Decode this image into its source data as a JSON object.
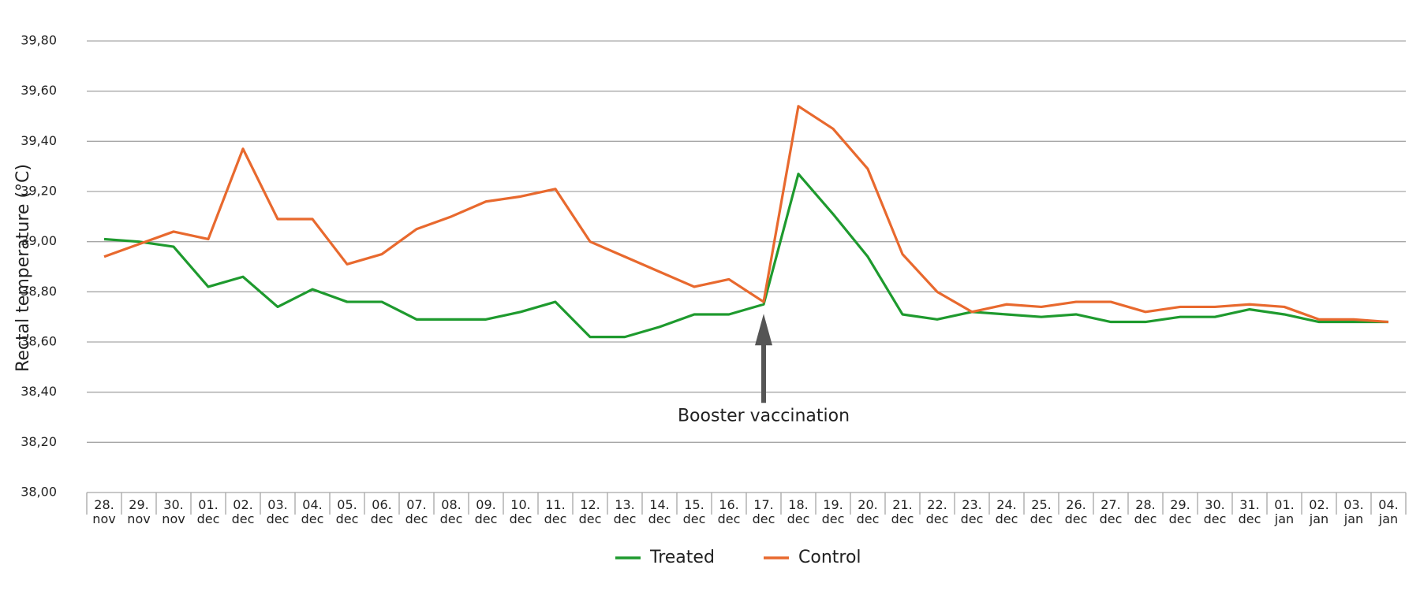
{
  "chart_data": {
    "type": "line",
    "y_label": "Rectal temperature (°C)",
    "annotation": "Booster vaccination",
    "categories": [
      "28. nov",
      "29. nov",
      "30. nov",
      "01. dec",
      "02. dec",
      "03. dec",
      "04. dec",
      "05. dec",
      "06. dec",
      "07. dec",
      "08. dec",
      "09. dec",
      "10. dec",
      "11. dec",
      "12. dec",
      "13. dec",
      "14. dec",
      "15. dec",
      "16. dec",
      "17. dec",
      "18. dec",
      "19. dec",
      "20. dec",
      "21. dec",
      "22. dec",
      "23. dec",
      "24. dec",
      "25. dec",
      "26. dec",
      "27. dec",
      "28. dec",
      "29. dec",
      "30. dec",
      "31. dec",
      "01. jan",
      "02. jan",
      "03. jan",
      "04. jan"
    ],
    "series": [
      {
        "name": "Treated",
        "color": "#1e9a2e",
        "values": [
          39.01,
          39.0,
          38.98,
          38.82,
          38.86,
          38.74,
          38.81,
          38.76,
          38.76,
          38.69,
          38.69,
          38.69,
          38.72,
          38.76,
          38.62,
          38.62,
          38.66,
          38.71,
          38.71,
          38.75,
          39.27,
          39.11,
          38.94,
          38.71,
          38.69,
          38.72,
          38.71,
          38.7,
          38.71,
          38.68,
          38.68,
          38.7,
          38.7,
          38.73,
          38.71,
          38.68,
          38.68,
          38.68
        ]
      },
      {
        "name": "Control",
        "color": "#e8692e",
        "values": [
          38.94,
          38.99,
          39.04,
          39.01,
          39.37,
          39.09,
          39.09,
          38.91,
          38.95,
          39.05,
          39.1,
          39.16,
          39.18,
          39.21,
          39.0,
          38.94,
          38.88,
          38.82,
          38.85,
          38.76,
          39.54,
          39.45,
          39.29,
          38.95,
          38.8,
          38.72,
          38.75,
          38.74,
          38.76,
          38.76,
          38.72,
          38.74,
          38.74,
          38.75,
          38.74,
          38.69,
          38.69,
          38.68
        ]
      }
    ],
    "ylim": [
      38.0,
      39.8
    ],
    "yticks": [
      {
        "value": 38.0,
        "label": "38,00"
      },
      {
        "value": 38.2,
        "label": "38,20"
      },
      {
        "value": 38.4,
        "label": "38,40"
      },
      {
        "value": 38.6,
        "label": "38,60"
      },
      {
        "value": 38.8,
        "label": "38,80"
      },
      {
        "value": 39.0,
        "label": "39,00"
      },
      {
        "value": 39.2,
        "label": "39,20"
      },
      {
        "value": 39.4,
        "label": "39,40"
      },
      {
        "value": 39.6,
        "label": "39,60"
      },
      {
        "value": 39.8,
        "label": "39,80"
      }
    ],
    "grid": true,
    "legend": "bottom"
  }
}
